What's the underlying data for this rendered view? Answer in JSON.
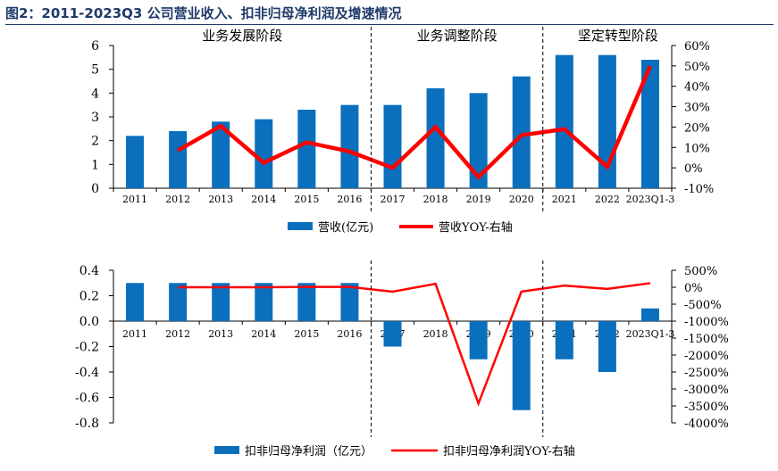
{
  "page_title": "图2：2011-2023Q3 公司营业收入、扣非归母净利润及增速情况",
  "colors": {
    "bar": "#0a6fbd",
    "line": "#ff0000",
    "title": "#1f3a6b",
    "axis": "#000000"
  },
  "chart_data": [
    {
      "type": "bar+line",
      "categories": [
        "2011",
        "2012",
        "2013",
        "2014",
        "2015",
        "2016",
        "2017",
        "2018",
        "2019",
        "2020",
        "2021",
        "2022",
        "2023Q1-3"
      ],
      "phases": [
        "业务发展阶段",
        "业务调整阶段",
        "坚定转型阶段"
      ],
      "left_axis": {
        "ylim": [
          0,
          6
        ],
        "ticks": [
          "0",
          "1",
          "2",
          "3",
          "4",
          "5",
          "6"
        ]
      },
      "right_axis": {
        "ylim": [
          -10,
          60
        ],
        "ticks": [
          "-10%",
          "0%",
          "10%",
          "20%",
          "30%",
          "40%",
          "50%",
          "60%"
        ]
      },
      "series": [
        {
          "name": "营收(亿元)",
          "kind": "bar",
          "axis": "left",
          "values": [
            2.2,
            2.4,
            2.8,
            2.9,
            3.3,
            3.5,
            3.5,
            4.2,
            4.0,
            4.7,
            5.6,
            5.6,
            5.4
          ]
        },
        {
          "name": "营收YOY-右轴",
          "kind": "line",
          "axis": "right",
          "values": [
            null,
            8.5,
            20.5,
            2.5,
            12.5,
            8,
            0,
            20,
            -4.5,
            16,
            19,
            0.5,
            50
          ]
        }
      ]
    },
    {
      "type": "bar+line",
      "categories": [
        "2011",
        "2012",
        "2013",
        "2014",
        "2015",
        "2016",
        "2017",
        "2018",
        "2019",
        "2020",
        "2021",
        "2022",
        "2023Q1-3"
      ],
      "left_axis": {
        "ylim": [
          -0.8,
          0.4
        ],
        "ticks": [
          "-0.8",
          "-0.6",
          "-0.4",
          "-0.2",
          "0.0",
          "0.2",
          "0.4"
        ]
      },
      "right_axis": {
        "ylim": [
          -4000,
          500
        ],
        "ticks": [
          "-4000%",
          "-3500%",
          "-3000%",
          "-2500%",
          "-2000%",
          "-1500%",
          "-1000%",
          "-500%",
          "0%",
          "500%"
        ]
      },
      "series": [
        {
          "name": "扣非归母净利润（亿元）",
          "kind": "bar",
          "axis": "left",
          "values": [
            0.3,
            0.3,
            0.3,
            0.3,
            0.3,
            0.3,
            -0.2,
            0,
            -0.3,
            -0.7,
            -0.3,
            -0.4,
            0.1
          ]
        },
        {
          "name": "扣非归母净利润YOY-右轴",
          "kind": "line",
          "axis": "right",
          "values": [
            null,
            0,
            0,
            0,
            10,
            10,
            -130,
            100,
            -3430,
            -130,
            50,
            -50,
            120
          ]
        }
      ]
    }
  ]
}
